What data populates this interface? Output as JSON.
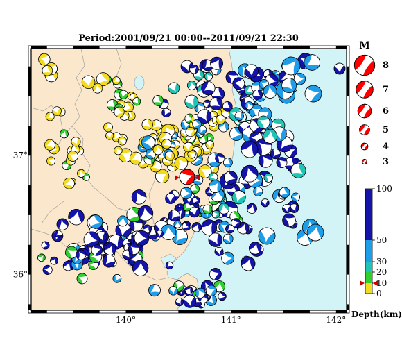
{
  "title": "Period:2001/09/21 00:00--2011/09/21 22:30",
  "lon_ticks": [
    {
      "value": 140,
      "label": "140°"
    },
    {
      "value": 141,
      "label": "141°"
    },
    {
      "value": 142,
      "label": "142°"
    }
  ],
  "lat_ticks": [
    {
      "value": 37,
      "label": "37°"
    },
    {
      "value": 36,
      "label": "36°"
    }
  ],
  "extent": {
    "lon": [
      139.1,
      142.1
    ],
    "lat": [
      35.7,
      37.9
    ]
  },
  "magnitude_legend": {
    "header": "M",
    "items": [
      {
        "label": "8",
        "value": 8
      },
      {
        "label": "7",
        "value": 7
      },
      {
        "label": "6",
        "value": 6
      },
      {
        "label": "5",
        "value": 5
      },
      {
        "label": "4",
        "value": 4
      },
      {
        "label": "3",
        "value": 3
      }
    ]
  },
  "depth_legend": {
    "unit_label": "Depth(km)",
    "ticks": [
      {
        "label": "100",
        "value": 100
      },
      {
        "label": "50",
        "value": 50
      },
      {
        "label": "30",
        "value": 30
      },
      {
        "label": "20",
        "value": 20
      },
      {
        "label": "10",
        "value": 10
      },
      {
        "label": "0",
        "value": 0
      }
    ],
    "bands": [
      {
        "from": 0,
        "to": 10,
        "color": "#f3dc1f"
      },
      {
        "from": 10,
        "to": 20,
        "color": "#2ecf2e"
      },
      {
        "from": 20,
        "to": 30,
        "color": "#1fc4b4"
      },
      {
        "from": 30,
        "to": 50,
        "color": "#1e9ee8"
      },
      {
        "from": 50,
        "to": 100,
        "color": "#1414a8"
      }
    ],
    "marker_depth": 10
  },
  "colors": {
    "land": "#fbe8cc",
    "sea": "#d2f4f6",
    "mainshock": "#ff0000",
    "boundary": "#9a9a9a",
    "lake": "#d2f4f6"
  }
}
